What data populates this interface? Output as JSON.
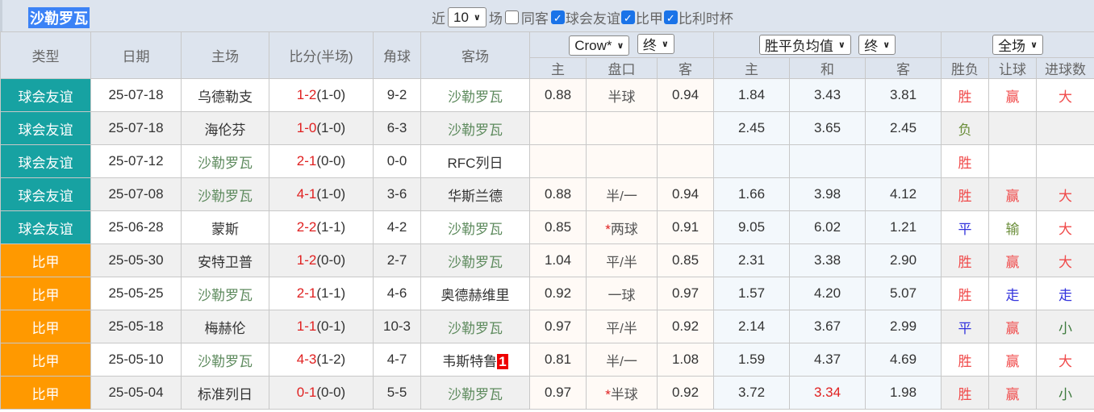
{
  "title": "沙勒罗瓦",
  "filters": {
    "recent_label": "近",
    "count": "10",
    "games_label": "场",
    "same_away": "同客",
    "same_away_checked": false,
    "comps": [
      {
        "label": "球会友谊",
        "checked": true
      },
      {
        "label": "比甲",
        "checked": true
      },
      {
        "label": "比利时杯",
        "checked": true
      }
    ]
  },
  "headers": {
    "type": "类型",
    "date": "日期",
    "home": "主场",
    "score": "比分(半场)",
    "corner": "角球",
    "away": "客场",
    "ah_company": "Crow*",
    "ah_time": "终",
    "eu_company": "胜平负均值",
    "eu_time": "终",
    "scope": "全场",
    "ah_cols": [
      "主",
      "盘口",
      "客"
    ],
    "eu_cols": [
      "主",
      "和",
      "客"
    ],
    "res_cols": [
      "胜负",
      "让球",
      "进球数"
    ]
  },
  "colors": {
    "friendly": "#17a2a2",
    "league": "#ff9900",
    "team": "#5d8a5d",
    "score": "#e02020"
  },
  "rows": [
    {
      "type": "球会友谊",
      "t": "f",
      "date": "25-07-18",
      "home": "乌德勒支",
      "hg": false,
      "score": "1-2",
      "ht": "(1-0)",
      "corner": "9-2",
      "away": "沙勒罗瓦",
      "ag": true,
      "badge": "",
      "ah": [
        "0.88",
        "半球",
        "0.94"
      ],
      "star": "",
      "eu": [
        "1.84",
        "3.43",
        "3.81"
      ],
      "eured": false,
      "res": [
        "胜",
        "赢",
        "大"
      ]
    },
    {
      "type": "球会友谊",
      "t": "f",
      "date": "25-07-18",
      "home": "海伦芬",
      "hg": false,
      "score": "1-0",
      "ht": "(1-0)",
      "corner": "6-3",
      "away": "沙勒罗瓦",
      "ag": true,
      "badge": "",
      "ah": [
        "",
        "",
        ""
      ],
      "star": "",
      "eu": [
        "2.45",
        "3.65",
        "2.45"
      ],
      "eured": false,
      "res": [
        "负",
        "",
        ""
      ]
    },
    {
      "type": "球会友谊",
      "t": "f",
      "date": "25-07-12",
      "home": "沙勒罗瓦",
      "hg": true,
      "score": "2-1",
      "ht": "(0-0)",
      "corner": "0-0",
      "away": "RFC列日",
      "ag": false,
      "badge": "",
      "ah": [
        "",
        "",
        ""
      ],
      "star": "",
      "eu": [
        "",
        "",
        ""
      ],
      "eured": false,
      "res": [
        "胜",
        "",
        ""
      ]
    },
    {
      "type": "球会友谊",
      "t": "f",
      "date": "25-07-08",
      "home": "沙勒罗瓦",
      "hg": true,
      "score": "4-1",
      "ht": "(1-0)",
      "corner": "3-6",
      "away": "华斯兰德",
      "ag": false,
      "badge": "",
      "ah": [
        "0.88",
        "半/一",
        "0.94"
      ],
      "star": "",
      "eu": [
        "1.66",
        "3.98",
        "4.12"
      ],
      "eured": false,
      "res": [
        "胜",
        "赢",
        "大"
      ]
    },
    {
      "type": "球会友谊",
      "t": "f",
      "date": "25-06-28",
      "home": "蒙斯",
      "hg": false,
      "score": "2-2",
      "ht": "(1-1)",
      "corner": "4-2",
      "away": "沙勒罗瓦",
      "ag": true,
      "badge": "",
      "ah": [
        "0.85",
        "两球",
        "0.91"
      ],
      "star": "*",
      "eu": [
        "9.05",
        "6.02",
        "1.21"
      ],
      "eured": false,
      "res": [
        "平",
        "输",
        "大"
      ]
    },
    {
      "type": "比甲",
      "t": "b",
      "date": "25-05-30",
      "home": "安特卫普",
      "hg": false,
      "score": "1-2",
      "ht": "(0-0)",
      "corner": "2-7",
      "away": "沙勒罗瓦",
      "ag": true,
      "badge": "",
      "ah": [
        "1.04",
        "平/半",
        "0.85"
      ],
      "star": "",
      "eu": [
        "2.31",
        "3.38",
        "2.90"
      ],
      "eured": false,
      "res": [
        "胜",
        "赢",
        "大"
      ]
    },
    {
      "type": "比甲",
      "t": "b",
      "date": "25-05-25",
      "home": "沙勒罗瓦",
      "hg": true,
      "score": "2-1",
      "ht": "(1-1)",
      "corner": "4-6",
      "away": "奥德赫维里",
      "ag": false,
      "badge": "",
      "ah": [
        "0.92",
        "一球",
        "0.97"
      ],
      "star": "",
      "eu": [
        "1.57",
        "4.20",
        "5.07"
      ],
      "eured": false,
      "res": [
        "胜",
        "走",
        "走"
      ]
    },
    {
      "type": "比甲",
      "t": "b",
      "date": "25-05-18",
      "home": "梅赫伦",
      "hg": false,
      "score": "1-1",
      "ht": "(0-1)",
      "corner": "10-3",
      "away": "沙勒罗瓦",
      "ag": true,
      "badge": "",
      "ah": [
        "0.97",
        "平/半",
        "0.92"
      ],
      "star": "",
      "eu": [
        "2.14",
        "3.67",
        "2.99"
      ],
      "eured": false,
      "res": [
        "平",
        "赢",
        "小"
      ]
    },
    {
      "type": "比甲",
      "t": "b",
      "date": "25-05-10",
      "home": "沙勒罗瓦",
      "hg": true,
      "score": "4-3",
      "ht": "(1-2)",
      "corner": "4-7",
      "away": "韦斯特鲁",
      "ag": false,
      "badge": "1",
      "ah": [
        "0.81",
        "半/一",
        "1.08"
      ],
      "star": "",
      "eu": [
        "1.59",
        "4.37",
        "4.69"
      ],
      "eured": false,
      "res": [
        "胜",
        "赢",
        "大"
      ]
    },
    {
      "type": "比甲",
      "t": "b",
      "date": "25-05-04",
      "home": "标准列日",
      "hg": false,
      "score": "0-1",
      "ht": "(0-0)",
      "corner": "5-5",
      "away": "沙勒罗瓦",
      "ag": true,
      "badge": "",
      "ah": [
        "0.97",
        "半球",
        "0.92"
      ],
      "star": "*",
      "eu": [
        "3.72",
        "3.34",
        "1.98"
      ],
      "eured": true,
      "res": [
        "胜",
        "赢",
        "小"
      ]
    }
  ]
}
